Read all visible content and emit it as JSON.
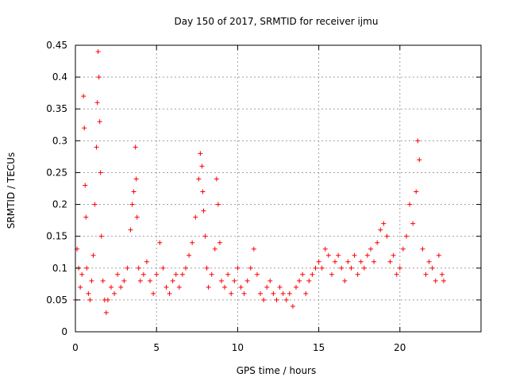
{
  "chart_data": {
    "type": "scatter",
    "title": "Day 150 of 2017, SRMTID for receiver ijmu",
    "xlabel": "GPS time / hours",
    "ylabel": "SRMTID / TECUs",
    "xlim": [
      0,
      25
    ],
    "ylim": [
      0,
      0.45
    ],
    "x_ticks": [
      0,
      5,
      10,
      15,
      20
    ],
    "x_tick_labels": [
      "0",
      "5",
      "10",
      "15",
      "20"
    ],
    "y_ticks": [
      0,
      0.05,
      0.1,
      0.15,
      0.2,
      0.25,
      0.3,
      0.35,
      0.4,
      0.45
    ],
    "y_tick_labels": [
      "0",
      "0.05",
      "0.1",
      "0.15",
      "0.2",
      "0.25",
      "0.3",
      "0.35",
      "0.4",
      "0.45"
    ],
    "grid": true,
    "legend": "none",
    "marker": "plus",
    "marker_color": "#ff0000",
    "series": [
      {
        "x": [
          0.0,
          0.1,
          0.2,
          0.3,
          0.4,
          0.5,
          0.55,
          0.6,
          0.65,
          0.7,
          0.8,
          0.9,
          1.0,
          1.1,
          1.2,
          1.3,
          1.35,
          1.4,
          1.45,
          1.5,
          1.55,
          1.6,
          1.7,
          1.8,
          1.9,
          2.0,
          2.2,
          2.4,
          2.6,
          2.8,
          3.0,
          3.2,
          3.4,
          3.5,
          3.6,
          3.7,
          3.75,
          3.8,
          3.9,
          4.0,
          4.2,
          4.4,
          4.6,
          4.8,
          5.0,
          5.2,
          5.4,
          5.6,
          5.8,
          6.0,
          6.2,
          6.4,
          6.6,
          6.8,
          7.0,
          7.2,
          7.4,
          7.6,
          7.7,
          7.8,
          7.85,
          7.9,
          8.0,
          8.1,
          8.2,
          8.4,
          8.6,
          8.7,
          8.8,
          8.9,
          9.0,
          9.2,
          9.4,
          9.6,
          9.8,
          10.0,
          10.2,
          10.4,
          10.6,
          10.8,
          11.0,
          11.2,
          11.4,
          11.6,
          11.8,
          12.0,
          12.2,
          12.4,
          12.6,
          12.8,
          13.0,
          13.2,
          13.4,
          13.6,
          13.8,
          14.0,
          14.2,
          14.4,
          14.6,
          14.8,
          15.0,
          15.2,
          15.4,
          15.6,
          15.8,
          16.0,
          16.2,
          16.4,
          16.6,
          16.8,
          17.0,
          17.2,
          17.4,
          17.6,
          17.8,
          18.0,
          18.2,
          18.4,
          18.6,
          18.8,
          19.0,
          19.2,
          19.4,
          19.6,
          19.8,
          20.0,
          20.2,
          20.4,
          20.6,
          20.8,
          21.0,
          21.1,
          21.2,
          21.4,
          21.6,
          21.8,
          22.0,
          22.2,
          22.4,
          22.6,
          22.7
        ],
        "y": [
          0.05,
          0.13,
          0.1,
          0.07,
          0.09,
          0.37,
          0.32,
          0.23,
          0.18,
          0.1,
          0.06,
          0.05,
          0.08,
          0.12,
          0.2,
          0.29,
          0.36,
          0.44,
          0.4,
          0.33,
          0.25,
          0.15,
          0.08,
          0.05,
          0.03,
          0.05,
          0.07,
          0.06,
          0.09,
          0.07,
          0.08,
          0.1,
          0.16,
          0.2,
          0.22,
          0.29,
          0.24,
          0.18,
          0.1,
          0.08,
          0.09,
          0.11,
          0.08,
          0.06,
          0.09,
          0.14,
          0.1,
          0.07,
          0.06,
          0.08,
          0.09,
          0.07,
          0.09,
          0.1,
          0.12,
          0.14,
          0.18,
          0.24,
          0.28,
          0.26,
          0.22,
          0.19,
          0.15,
          0.1,
          0.07,
          0.09,
          0.13,
          0.24,
          0.2,
          0.14,
          0.08,
          0.07,
          0.09,
          0.06,
          0.08,
          0.1,
          0.07,
          0.06,
          0.08,
          0.1,
          0.13,
          0.09,
          0.06,
          0.05,
          0.07,
          0.08,
          0.06,
          0.05,
          0.07,
          0.06,
          0.05,
          0.06,
          0.04,
          0.07,
          0.08,
          0.09,
          0.06,
          0.08,
          0.09,
          0.1,
          0.11,
          0.1,
          0.13,
          0.12,
          0.09,
          0.11,
          0.12,
          0.1,
          0.08,
          0.11,
          0.1,
          0.12,
          0.09,
          0.11,
          0.1,
          0.12,
          0.13,
          0.11,
          0.14,
          0.16,
          0.17,
          0.15,
          0.11,
          0.12,
          0.09,
          0.1,
          0.13,
          0.15,
          0.2,
          0.17,
          0.22,
          0.3,
          0.27,
          0.13,
          0.09,
          0.11,
          0.1,
          0.08,
          0.12,
          0.09,
          0.08
        ]
      }
    ]
  }
}
